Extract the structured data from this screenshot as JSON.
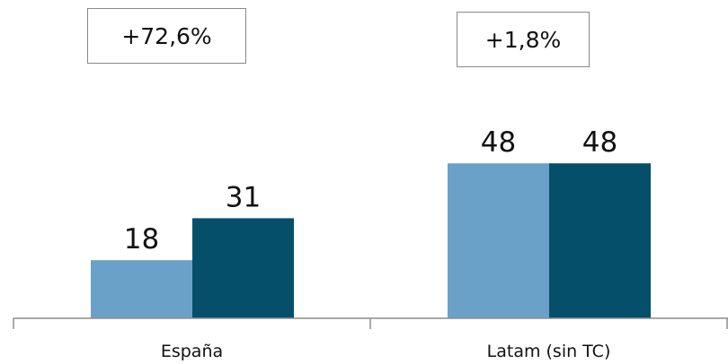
{
  "chart_data": {
    "type": "bar",
    "categories": [
      "España",
      "Latam (sin TC)"
    ],
    "series": [
      {
        "values": [
          18,
          48
        ]
      },
      {
        "values": [
          31,
          48
        ]
      }
    ],
    "data_labels": [
      [
        "18",
        "48"
      ],
      [
        "31",
        "48"
      ]
    ],
    "change_labels": [
      "+72,6%",
      "+1,8%"
    ],
    "ylim": [
      0,
      60
    ],
    "grid": false,
    "colors": [
      "#6aa1c9",
      "#054f6a"
    ]
  }
}
